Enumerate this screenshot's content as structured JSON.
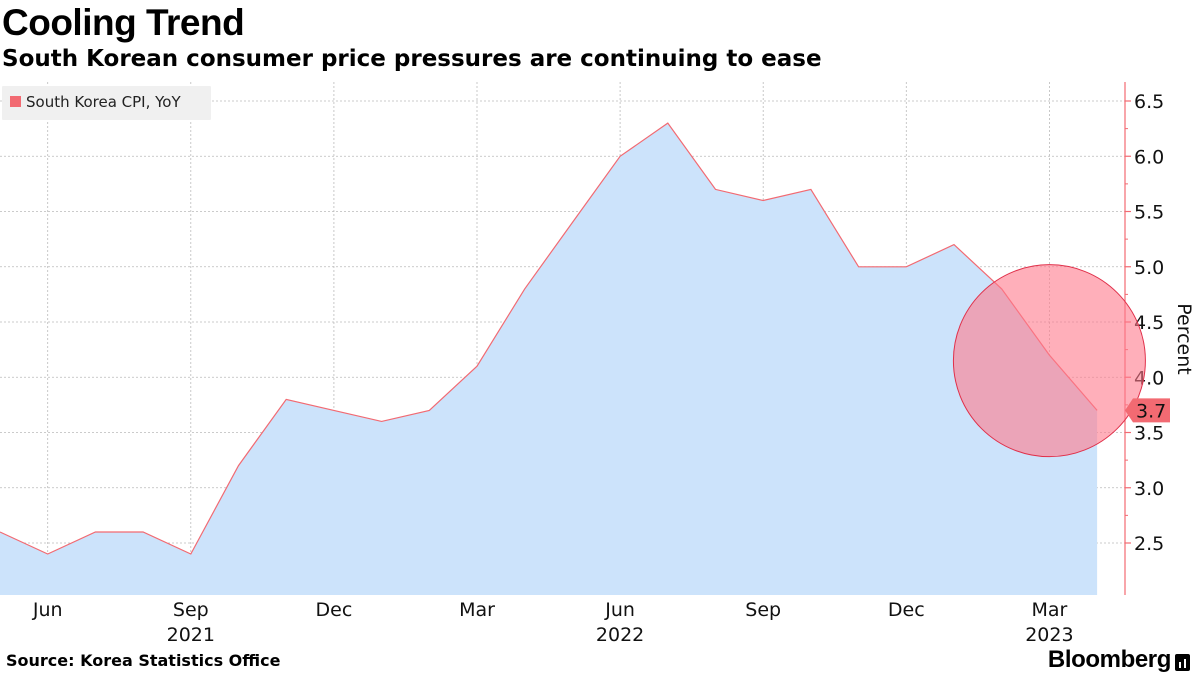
{
  "header": {
    "title": "Cooling Trend",
    "subtitle": "South Korean consumer price pressures are continuing to ease"
  },
  "footer": {
    "source": "Source: Korea Statistics Office",
    "brand": "Bloomberg"
  },
  "colors": {
    "area_fill": "#cce3fb",
    "line": "#f26a72",
    "axis": "#f26a72",
    "grid": "#bbbbbb",
    "highlight_circle": "#ff7a8c",
    "value_tag": "#f26a72",
    "legend_bg": "#f0f0f0"
  },
  "chart_data": {
    "type": "area",
    "title": "Cooling Trend",
    "ylabel": "Percent",
    "xlabel": "",
    "ylim": [
      2.0,
      6.75
    ],
    "yticks": [
      2.5,
      3.0,
      3.5,
      4.0,
      4.5,
      5.0,
      5.5,
      6.0,
      6.5
    ],
    "grid": true,
    "legend": {
      "label": "South Korea CPI, YoY",
      "position": "top-left"
    },
    "x_range": [
      "2021-05",
      "2023-04"
    ],
    "x_month_ticks": [
      "Jun",
      "Sep",
      "Dec",
      "Mar",
      "Jun",
      "Sep",
      "Dec",
      "Mar"
    ],
    "x_tick_months": [
      "2021-06",
      "2021-09",
      "2021-12",
      "2022-03",
      "2022-06",
      "2022-09",
      "2022-12",
      "2023-03"
    ],
    "x_years": [
      {
        "label": "2021",
        "month": "2021-09"
      },
      {
        "label": "2022",
        "month": "2022-06"
      },
      {
        "label": "2023",
        "month": "2023-03"
      }
    ],
    "series": [
      {
        "name": "South Korea CPI, YoY",
        "x": [
          "2021-05",
          "2021-06",
          "2021-07",
          "2021-08",
          "2021-09",
          "2021-10",
          "2021-11",
          "2021-12",
          "2022-01",
          "2022-02",
          "2022-03",
          "2022-04",
          "2022-05",
          "2022-06",
          "2022-07",
          "2022-08",
          "2022-09",
          "2022-10",
          "2022-11",
          "2022-12",
          "2023-01",
          "2023-02",
          "2023-03",
          "2023-04"
        ],
        "values": [
          2.6,
          2.4,
          2.6,
          2.6,
          2.4,
          3.2,
          3.8,
          3.7,
          3.6,
          3.7,
          4.1,
          4.8,
          5.4,
          6.0,
          6.3,
          5.7,
          5.6,
          5.7,
          5.0,
          5.0,
          5.2,
          4.8,
          4.2,
          3.7
        ]
      }
    ],
    "last_value_label": "3.7",
    "annotation": {
      "type": "circle",
      "center_month": "2023-03",
      "center_value": 4.15
    }
  }
}
